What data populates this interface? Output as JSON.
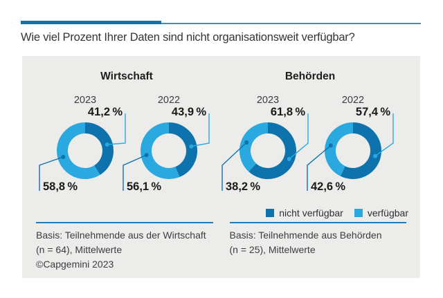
{
  "title": "Wie viel Prozent Ihrer Daten sind nicht organisationsweit verfügbar?",
  "colors": {
    "dark_blue": "#0e73ac",
    "light_blue": "#29a9e0",
    "rule_light": "#2b95cd",
    "divider": "#1d7ab2",
    "panel_bg": "#ececeb"
  },
  "legend": {
    "items": [
      {
        "label": "nicht verfügbar",
        "color_key": "dark_blue"
      },
      {
        "label": "verfügbar",
        "color_key": "light_blue"
      }
    ]
  },
  "sections": [
    {
      "name": "Wirtschaft",
      "donuts": [
        {
          "year": "2023",
          "nicht_pct": 41.2,
          "nicht_label": "41,2 %",
          "verf_pct": 58.8,
          "verf_label": "58,8 %"
        },
        {
          "year": "2022",
          "nicht_pct": 43.9,
          "nicht_label": "43,9 %",
          "verf_pct": 56.1,
          "verf_label": "56,1 %"
        }
      ],
      "footer_lines": [
        "Basis: Teilnehmende aus der Wirtschaft",
        "(n = 64), Mittelwerte",
        "©Capgemini 2023"
      ]
    },
    {
      "name": "Behörden",
      "donuts": [
        {
          "year": "2023",
          "nicht_pct": 61.8,
          "nicht_label": "61,8 %",
          "verf_pct": 38.2,
          "verf_label": "38,2 %"
        },
        {
          "year": "2022",
          "nicht_pct": 57.4,
          "nicht_label": "57,4 %",
          "verf_pct": 42.6,
          "verf_label": "42,6 %"
        }
      ],
      "footer_lines": [
        "Basis: Teilnehmende aus Behörden",
        "(n = 25), Mittelwerte"
      ]
    }
  ],
  "chart_data": {
    "type": "pie",
    "subtype": "donut",
    "title": "Wie viel Prozent Ihrer Daten sind nicht organisationsweit verfügbar?",
    "legend": [
      "nicht verfügbar",
      "verfügbar"
    ],
    "legend_position": "bottom-right",
    "groups": [
      {
        "section": "Wirtschaft",
        "year": "2023",
        "nicht_verfuegbar_pct": 41.2,
        "verfuegbar_pct": 58.8
      },
      {
        "section": "Wirtschaft",
        "year": "2022",
        "nicht_verfuegbar_pct": 43.9,
        "verfuegbar_pct": 56.1
      },
      {
        "section": "Behörden",
        "year": "2023",
        "nicht_verfuegbar_pct": 61.8,
        "verfuegbar_pct": 38.2
      },
      {
        "section": "Behörden",
        "year": "2022",
        "nicht_verfuegbar_pct": 57.4,
        "verfuegbar_pct": 42.6
      }
    ],
    "notes": [
      "Basis: Teilnehmende aus der Wirtschaft (n = 64), Mittelwerte",
      "Basis: Teilnehmende aus Behörden (n = 25), Mittelwerte",
      "©Capgemini 2023"
    ]
  }
}
